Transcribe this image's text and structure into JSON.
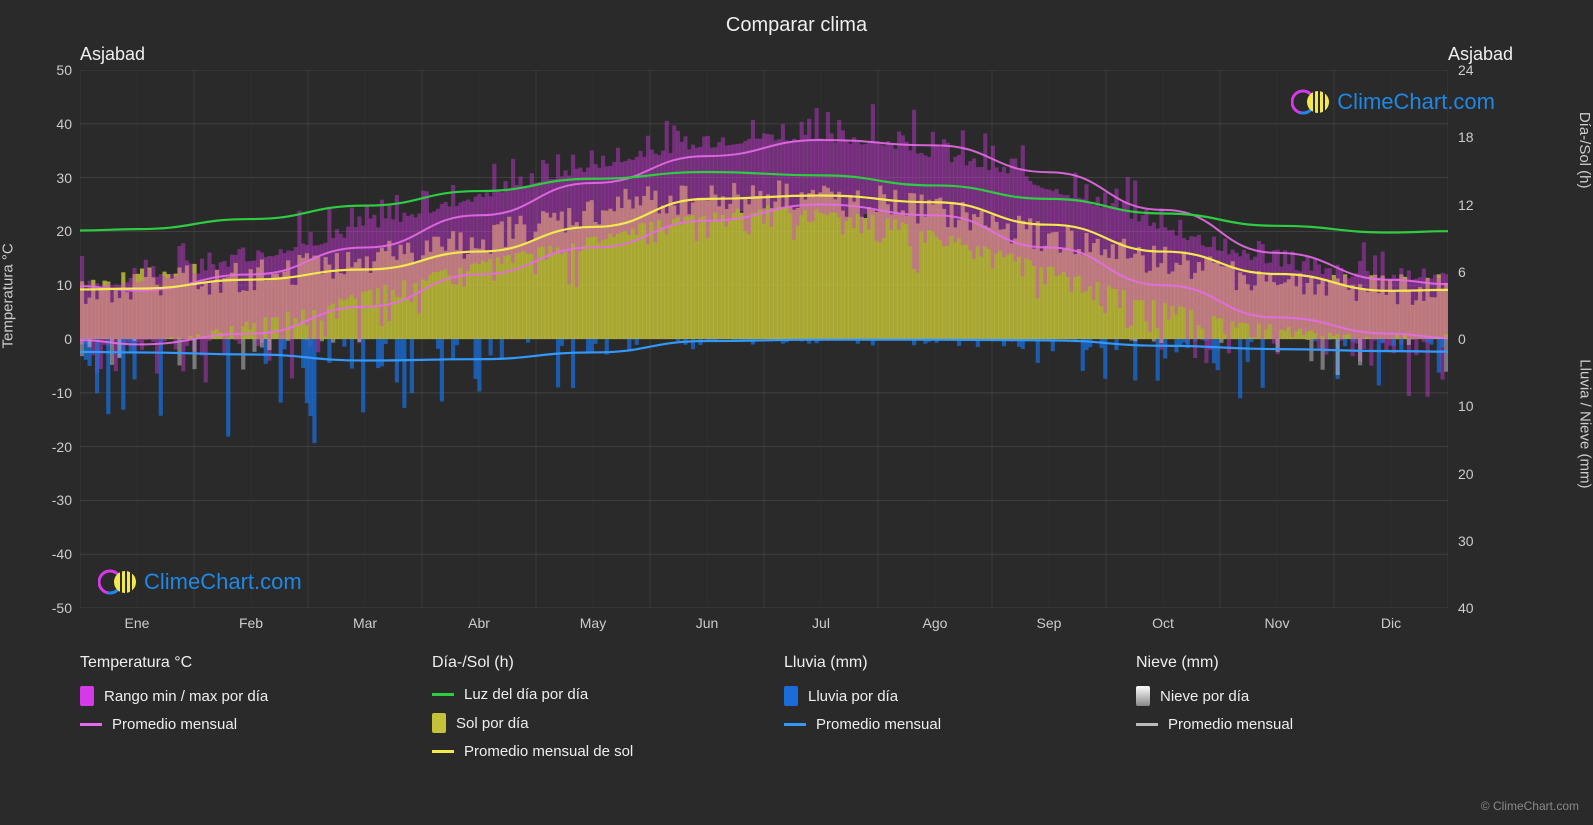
{
  "title": "Comparar clima",
  "location_left": "Asjabad",
  "location_right": "Asjabad",
  "axis": {
    "left_label": "Temperatura °C",
    "right_top_label": "Día-/Sol (h)",
    "right_bottom_label": "Lluvia / Nieve (mm)",
    "temp_min": -50,
    "temp_max": 50,
    "temp_step": 10,
    "hours_min": 0,
    "hours_max": 24,
    "hours_step": 6,
    "precip_min": 0,
    "precip_max": 40,
    "precip_step": 10,
    "months": [
      "Ene",
      "Feb",
      "Mar",
      "Abr",
      "May",
      "Jun",
      "Jul",
      "Ago",
      "Sep",
      "Oct",
      "Nov",
      "Dic"
    ]
  },
  "colors": {
    "bg": "#2a2a2a",
    "grid": "#5a5a5a",
    "grid_minor": "#404040",
    "temp_range_fill": "#d63ae8",
    "temp_avg": "#e66be8",
    "daylight": "#2ecc40",
    "sun_fill": "#c4c238",
    "sun_avg": "#f2e94e",
    "rain_fill": "#1a6dd8",
    "rain_avg": "#3399ff",
    "snow_fill": "#d8d8d8",
    "snow_avg": "#bbbbbb"
  },
  "series": {
    "temp_max_avg": [
      9,
      12,
      17,
      23,
      29,
      34,
      37,
      36,
      31,
      24,
      16,
      11
    ],
    "temp_min_avg": [
      -1,
      1,
      6,
      12,
      17,
      22,
      25,
      23,
      17,
      10,
      4,
      1
    ],
    "temp_avg": [
      4,
      6.5,
      11.5,
      17.5,
      23,
      28,
      31,
      29.5,
      24,
      17,
      10,
      6
    ],
    "temp_max_extreme": [
      18,
      22,
      28,
      34,
      38,
      43,
      46,
      45,
      40,
      33,
      26,
      20
    ],
    "temp_min_extreme": [
      -18,
      -15,
      -8,
      -1,
      6,
      13,
      17,
      14,
      6,
      -2,
      -9,
      -15
    ],
    "daylight": [
      9.8,
      10.7,
      11.9,
      13.2,
      14.3,
      14.9,
      14.6,
      13.7,
      12.5,
      11.2,
      10.1,
      9.5
    ],
    "sun": [
      4.5,
      5.3,
      6.2,
      7.8,
      10.0,
      12.5,
      12.8,
      12.2,
      10.2,
      7.8,
      5.8,
      4.3
    ],
    "sun_avg_line": [
      4.5,
      5.3,
      6.2,
      7.8,
      10.0,
      12.5,
      12.8,
      12.2,
      10.2,
      7.8,
      5.8,
      4.3
    ],
    "rain_avg": [
      2.0,
      2.3,
      3.2,
      3.0,
      2.0,
      0.3,
      0.1,
      0.1,
      0.2,
      1.0,
      1.5,
      1.8
    ],
    "rain_daily_max": [
      12,
      14,
      18,
      16,
      10,
      2,
      1,
      1,
      2,
      8,
      10,
      11
    ],
    "snow_daily_max": [
      8,
      6,
      3,
      0,
      0,
      0,
      0,
      0,
      0,
      0,
      2,
      6
    ]
  },
  "legend": {
    "col1": {
      "header": "Temperatura °C",
      "items": [
        {
          "type": "swatch",
          "name": "temp-range",
          "label": "Rango min / max por día"
        },
        {
          "type": "line",
          "name": "temp-avg",
          "label": "Promedio mensual"
        }
      ]
    },
    "col2": {
      "header": "Día-/Sol (h)",
      "items": [
        {
          "type": "line",
          "name": "daylight",
          "label": "Luz del día por día"
        },
        {
          "type": "swatch",
          "name": "sun",
          "label": "Sol por día"
        },
        {
          "type": "line",
          "name": "sun-avg",
          "label": "Promedio mensual de sol"
        }
      ]
    },
    "col3": {
      "header": "Lluvia (mm)",
      "items": [
        {
          "type": "swatch",
          "name": "rain",
          "label": "Lluvia por día"
        },
        {
          "type": "line",
          "name": "rain-avg",
          "label": "Promedio mensual"
        }
      ]
    },
    "col4": {
      "header": "Nieve (mm)",
      "items": [
        {
          "type": "swatch",
          "name": "snow",
          "label": "Nieve por día"
        },
        {
          "type": "line",
          "name": "snow-avg",
          "label": "Promedio mensual"
        }
      ]
    }
  },
  "watermark": "ClimeChart.com",
  "copyright": "© ClimeChart.com"
}
